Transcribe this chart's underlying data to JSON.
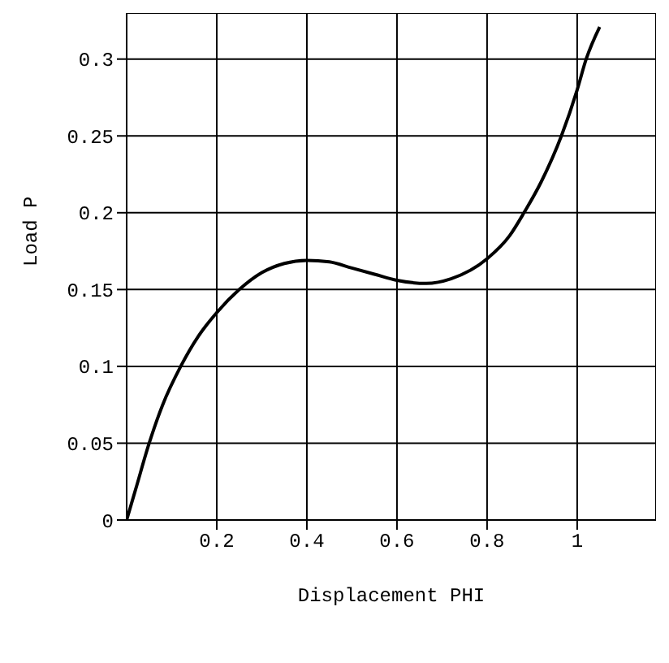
{
  "chart_data": {
    "type": "line",
    "xlabel": "Displacement PHI",
    "ylabel": "Load P",
    "x": [
      0,
      0.02,
      0.05,
      0.08,
      0.12,
      0.16,
      0.2,
      0.25,
      0.3,
      0.35,
      0.4,
      0.45,
      0.5,
      0.55,
      0.6,
      0.665,
      0.72,
      0.8,
      0.85,
      0.882,
      0.92,
      0.965,
      1.0,
      1.02,
      1.05
    ],
    "series": [
      {
        "color": "#000000",
        "values": [
          0,
          0.02,
          0.05,
          0.075,
          0.1,
          0.12,
          0.135,
          0.15,
          0.161,
          0.167,
          0.169,
          0.168,
          0.164,
          0.16,
          0.156,
          0.154,
          0.157,
          0.17,
          0.185,
          0.2,
          0.22,
          0.25,
          0.28,
          0.3,
          0.321
        ]
      }
    ],
    "xlim": [
      0,
      1.175
    ],
    "ylim": [
      0,
      0.33
    ],
    "xticks": [
      0.2,
      0.4,
      0.6,
      0.8,
      1
    ],
    "yticks": [
      0,
      0.05,
      0.1,
      0.15,
      0.2,
      0.25,
      0.3
    ],
    "grid": true,
    "marker": "none",
    "line_style": "solid"
  }
}
